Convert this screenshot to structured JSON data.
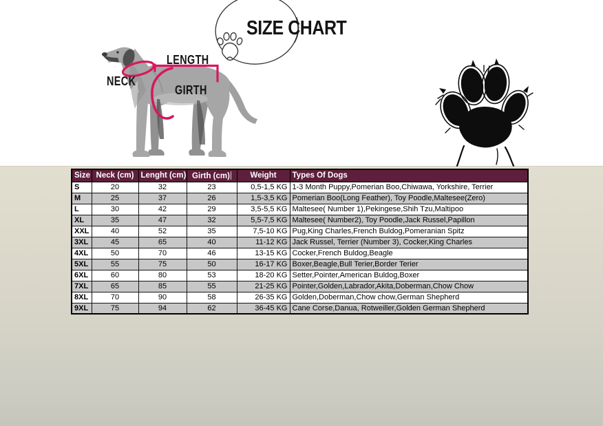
{
  "title": "SIZE CHART",
  "diagram": {
    "neck_label": "NECK",
    "length_label": "LENGTH",
    "girth_label": "GIRTH"
  },
  "colors": {
    "header_bg": "#5e1f3c",
    "row_alt_gray": "#c7c7c7",
    "measure_pink": "#d6185f",
    "dog_gray": "#a6a6a6"
  },
  "chart_data": {
    "type": "table",
    "title": "SIZE CHART",
    "columns": [
      "Size",
      "Neck (cm)",
      "Lenght (cm)",
      "Girth (cm)",
      "Weight",
      "Types Of Dogs"
    ],
    "rows": [
      [
        "S",
        "20",
        "32",
        "23",
        "0,5-1,5 KG",
        "1-3 Month Puppy,Pomerian Boo,Chiwawa, Yorkshire, Terrier"
      ],
      [
        "M",
        "25",
        "37",
        "26",
        "1,5-3,5 KG",
        "Pomerian Boo(Long Feather), Toy Poodle,Maltesee(Zero)"
      ],
      [
        "L",
        "30",
        "42",
        "29",
        "3,5-5,5 KG",
        "Maltesee( Number 1),Pekingese,Shih Tzu,Maltipoo"
      ],
      [
        "XL",
        "35",
        "47",
        "32",
        "5,5-7,5 KG",
        "Maltesee( Number2), Toy Poodle,Jack Russel,Papillon"
      ],
      [
        "XXL",
        "40",
        "52",
        "35",
        "7,5-10 KG",
        "Pug,King Charles,French Buldog,Pomeranian Spitz"
      ],
      [
        "3XL",
        "45",
        "65",
        "40",
        "11-12 KG",
        "Jack Russel, Terrier (Number 3), Cocker,King Charles"
      ],
      [
        "4XL",
        "50",
        "70",
        "46",
        "13-15 KG",
        "Cocker,French Buldog,Beagle"
      ],
      [
        "5XL",
        "55",
        "75",
        "50",
        "16-17 KG",
        "Boxer,Beagle,Bull Terier,Border Terier"
      ],
      [
        "6XL",
        "60",
        "80",
        "53",
        "18-20 KG",
        "Setter,Pointer,American Buldog,Boxer"
      ],
      [
        "7XL",
        "65",
        "85",
        "55",
        "21-25 KG",
        "Pointer,Golden,Labrador,Akita,Doberman,Chow Chow"
      ],
      [
        "8XL",
        "70",
        "90",
        "58",
        "26-35 KG",
        "Golden,Doberman,Chow chow,German Shepherd"
      ],
      [
        "9XL",
        "75",
        "94",
        "62",
        "36-45 KG",
        "Cane Corse,Danua, Rotweiller,Golden German Shepherd"
      ]
    ]
  }
}
